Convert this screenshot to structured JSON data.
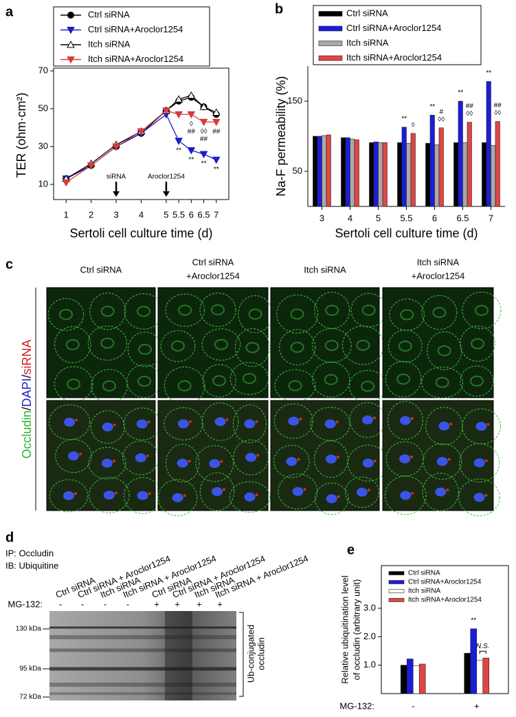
{
  "panel_labels": [
    "a",
    "b",
    "c",
    "d",
    "e"
  ],
  "chart_data": [
    {
      "type": "line",
      "x_label": "Sertoli cell culture time (d)",
      "y_label": "TER (ohm·cm²)",
      "x": [
        1,
        2,
        3,
        4,
        5,
        5.5,
        6,
        6.5,
        7
      ],
      "xlim": [
        0.5,
        7.5
      ],
      "xticks": [
        1,
        2,
        3,
        4,
        5,
        5.5,
        6,
        6.5,
        7
      ],
      "ylim": [
        2,
        70
      ],
      "yticks": [
        10,
        30,
        50,
        70
      ],
      "events": [
        {
          "x": 3,
          "label": "siRNA"
        },
        {
          "x": 5,
          "label": "Aroclor1254"
        }
      ],
      "series": [
        {
          "name": "Ctrl siRNA",
          "color": "#000000",
          "marker": "circle",
          "marker_fill": "#000000",
          "values": [
            13,
            20,
            30,
            37,
            49,
            54,
            56,
            51,
            47
          ]
        },
        {
          "name": "Ctrl siRNA+Aroclor1254",
          "color": "#1c1cc8",
          "marker": "triangle-down",
          "marker_fill": "#1c1cc8",
          "values": [
            13,
            20,
            30,
            37,
            47,
            33,
            28,
            26,
            23
          ],
          "labels": [
            [],
            [],
            [],
            [],
            [],
            [
              "**"
            ],
            [
              "**"
            ],
            [
              "**"
            ],
            [
              "**"
            ]
          ]
        },
        {
          "name": "Itch siRNA",
          "color": "#000000",
          "marker": "triangle-up",
          "marker_fill": "#ffffff",
          "values": [
            13,
            21,
            31,
            38,
            49,
            55,
            57,
            51,
            48
          ]
        },
        {
          "name": "Itch siRNA+Aroclor1254",
          "color": "#d83a3a",
          "marker": "triangle-down",
          "marker_fill": "#d83a3a",
          "values": [
            11,
            20,
            30,
            38,
            49,
            47,
            47,
            43,
            43
          ],
          "labels": [
            [],
            [],
            [],
            [],
            [],
            [],
            [
              "◊",
              "##"
            ],
            [
              "◊◊",
              "##"
            ],
            [
              "##"
            ]
          ]
        }
      ]
    },
    {
      "type": "bar",
      "x_label": "Sertoli cell culture time (d)",
      "y_label": "Na-F permeability (%)",
      "categories": [
        "3",
        "4",
        "5",
        "5.5",
        "6",
        "6.5",
        "7"
      ],
      "ylim": [
        0,
        200
      ],
      "yticks": [
        50,
        150
      ],
      "series": [
        {
          "name": "Ctrl siRNA",
          "color": "#000000",
          "values": [
            100,
            98,
            91,
            91,
            90,
            91,
            91
          ]
        },
        {
          "name": "Ctrl siRNA+Aroclor1254",
          "color": "#1c1cdc",
          "values": [
            100,
            98,
            92,
            113,
            130,
            150,
            178
          ],
          "labels": [
            [],
            [],
            [],
            [
              "**"
            ],
            [
              "**"
            ],
            [
              "**"
            ],
            [
              "**"
            ]
          ]
        },
        {
          "name": "Itch siRNA",
          "color": "#a9a9a9",
          "values": [
            101,
            96,
            91,
            90,
            88,
            91,
            87
          ]
        },
        {
          "name": "Itch siRNA+Aroclor1254",
          "color": "#e04545",
          "values": [
            102,
            95,
            91,
            104,
            112,
            120,
            121
          ],
          "labels": [
            [],
            [],
            [],
            [
              "◊"
            ],
            [
              "#",
              "◊◊"
            ],
            [
              "##",
              "◊◊"
            ],
            [
              "##",
              "◊◊"
            ]
          ]
        }
      ]
    },
    {
      "type": "bar",
      "x_label": "MG-132:",
      "y_label": [
        "Relative ubiquitination level",
        "of occludin (arbitrary unit)"
      ],
      "categories": [
        "-",
        "+"
      ],
      "ylim": [
        0,
        4.5
      ],
      "yticks": [
        {
          "value": 1,
          "label": "1.0"
        },
        {
          "value": 2,
          "label": "2.0"
        },
        {
          "value": 3,
          "label": "3.0"
        }
      ],
      "annotation": "N.S.",
      "series": [
        {
          "name": "Ctrl siRNA",
          "color": "#000000",
          "values": [
            1.0,
            1.42
          ]
        },
        {
          "name": "Ctrl siRNA+Aroclor1254",
          "color": "#1c1cdc",
          "values": [
            1.22,
            2.28
          ],
          "labels": [
            [],
            [
              "**"
            ]
          ]
        },
        {
          "name": "Itch siRNA",
          "color": "#ffffff",
          "values": [
            0.98,
            1.18
          ]
        },
        {
          "name": "Itch siRNA+Aroclor1254",
          "color": "#e04545",
          "values": [
            1.04,
            1.25
          ]
        }
      ]
    }
  ],
  "panel_c": {
    "columns": [
      [
        "Ctrl siRNA"
      ],
      [
        "Ctrl siRNA",
        "+Aroclor1254"
      ],
      [
        "Itch siRNA"
      ],
      [
        "Itch siRNA",
        "+Aroclor1254"
      ]
    ],
    "row_label": [
      "Occludin",
      "/",
      "DAPI",
      "/",
      "siRNA"
    ]
  },
  "panel_d": {
    "ip": "IP: Occludin",
    "ib": "IB: Ubiquitine",
    "lanes": [
      "Ctrl siRNA",
      "Ctrl siRNA + Aroclor1254",
      "Itch siRNA",
      "Itch siRNA + Aroclor1254",
      "Ctrl siRNA",
      "Ctrl siRNA + Aroclor1254",
      "Itch siRNA",
      "Itch siRNA + Aroclor1254"
    ],
    "mg132_label": "MG-132:",
    "mg132": [
      "-",
      "-",
      "-",
      "-",
      "+",
      "+",
      "+",
      "+"
    ],
    "markers": [
      "130 kDa",
      "95 kDa",
      "72 kDa"
    ],
    "bracket_label": [
      "Ub-conjugated",
      "occludin"
    ]
  }
}
